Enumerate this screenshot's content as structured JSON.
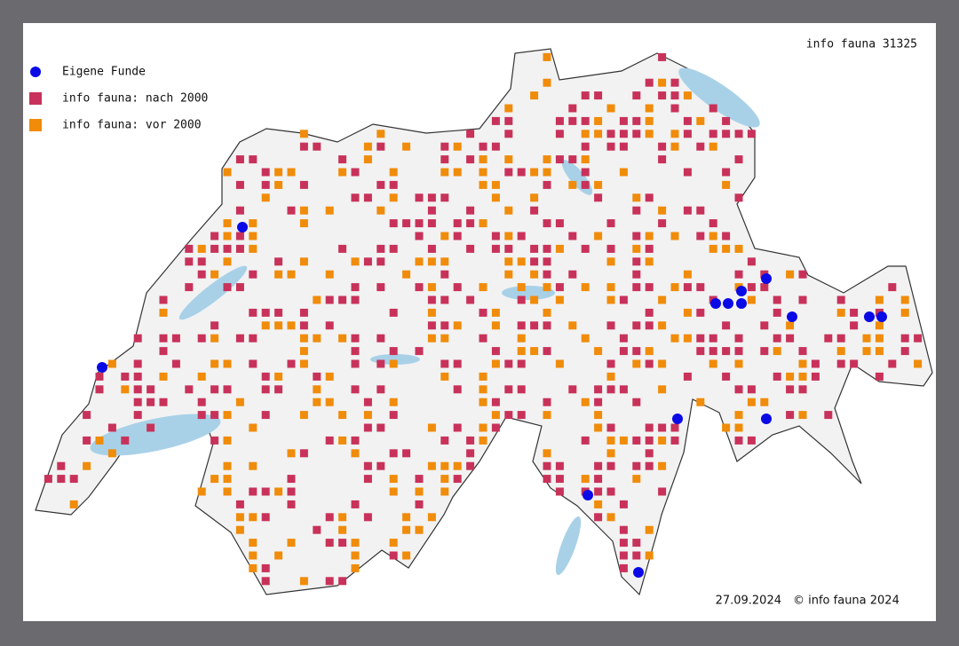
{
  "header": {
    "title": "info fauna 31325"
  },
  "legend": [
    {
      "label": "Eigene Funde",
      "color": "#0a0ae6",
      "shape": "circle"
    },
    {
      "label": "info fauna: nach 2000",
      "color": "#c8325a",
      "shape": "square"
    },
    {
      "label": "info fauna: vor 2000",
      "color": "#f08c0a",
      "shape": "square"
    }
  ],
  "footer": {
    "date": "27.09.2024",
    "copyright": "© info fauna 2024"
  }
}
